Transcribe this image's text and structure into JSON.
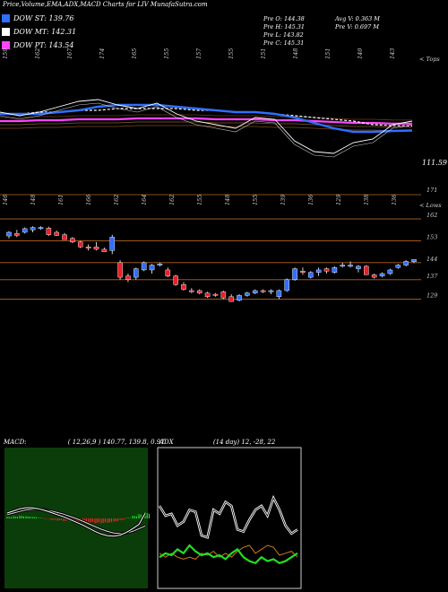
{
  "header": {
    "title": "Price,Volume,EMA,ADX,MACD Charts for LIV MunafaSutra.com",
    "legend": [
      {
        "label": "DOW ST: 139.76",
        "color": "#2f6fff"
      },
      {
        "label": "DOW MT: 142.31",
        "color": "#ffffff"
      },
      {
        "label": "DOW PT: 143.54",
        "color": "#ff44ff"
      }
    ],
    "stats_left": [
      "Pre  O: 144.38",
      "Pre  H: 145.31",
      "Pre  L: 143.82",
      "Pre  C: 145.31"
    ],
    "stats_right": [
      "Avg V: 0.363 M",
      "Pre  V: 0.697 M"
    ]
  },
  "colors": {
    "up": "#2f6fff",
    "down": "#e8202a",
    "ema_st": "#2f6fff",
    "ema_pt": "#ff44ff",
    "grid": "#b5651d",
    "adx_green": "#22dd22",
    "adx_orange": "#d07a1a",
    "macd_bg": "#0b3d0b",
    "macd_green": "#22dd22",
    "macd_red": "#ff2222"
  },
  "chart_data": [
    {
      "type": "line",
      "title": "Price with EMAs",
      "top_labels": [
        "159",
        "162",
        "167",
        "174",
        "165",
        "155",
        "157",
        "155",
        "151",
        "148",
        "151",
        "140",
        "143"
      ],
      "right_labels": [
        "< Tops",
        "111.59"
      ],
      "series": [
        {
          "name": "price",
          "values": [
            150,
            148,
            150,
            153,
            156,
            157,
            154,
            152,
            155,
            149,
            145,
            143,
            141,
            147,
            146,
            134,
            128,
            127,
            133,
            135,
            143,
            145
          ]
        },
        {
          "name": "DOW ST",
          "values": [
            149,
            149,
            149,
            150,
            151,
            153,
            154,
            154,
            154,
            153,
            152,
            151,
            150,
            150,
            149,
            147,
            144,
            141,
            139,
            139,
            139.5,
            139.76
          ]
        },
        {
          "name": "DOW MT",
          "values": [
            149,
            149,
            150,
            150,
            151,
            151,
            152,
            152,
            152,
            152,
            151,
            151,
            150,
            150,
            149,
            148,
            147,
            146,
            145,
            143,
            142.5,
            142.31
          ]
        },
        {
          "name": "DOW PT",
          "values": [
            145,
            145,
            145.5,
            145.5,
            146,
            146,
            146,
            146.5,
            146.5,
            146.5,
            146.5,
            146,
            146,
            146,
            145.5,
            145.5,
            145,
            144.5,
            144,
            144,
            143.6,
            143.54
          ]
        }
      ]
    },
    {
      "type": "candlestick",
      "title": "Daily candles",
      "top_labels": [
        "146",
        "148",
        "161",
        "166",
        "162",
        "164",
        "162",
        "155",
        "148",
        "155",
        "139",
        "136",
        "129",
        "138",
        "136"
      ],
      "right_labels": [
        "171",
        "< Lows",
        "162",
        "153",
        "144",
        "137",
        "129"
      ],
      "y_ticks": [
        162,
        153,
        144,
        137,
        129
      ],
      "ylim": [
        124,
        172
      ],
      "candles": [
        [
          155,
          157,
          154,
          156.5
        ],
        [
          156,
          157.5,
          154.5,
          155.2
        ],
        [
          156.5,
          158.5,
          156,
          158
        ],
        [
          157.5,
          159,
          156.5,
          158.5
        ],
        [
          158,
          159,
          157.5,
          158.5
        ],
        [
          158.2,
          158.8,
          155,
          155.5
        ],
        [
          156.5,
          157.2,
          155,
          155.2
        ],
        [
          155.5,
          156.2,
          153.5,
          153.5
        ],
        [
          154,
          154.5,
          152,
          152.5
        ],
        [
          152.5,
          153,
          150,
          150.5
        ],
        [
          150.5,
          151.5,
          149,
          150
        ],
        [
          150.5,
          152.5,
          149,
          149.5
        ],
        [
          149.5,
          150.2,
          148.5,
          148.5
        ],
        [
          149,
          155.5,
          147.5,
          154.5
        ],
        [
          144,
          145,
          137,
          138
        ],
        [
          138.5,
          139.5,
          136,
          137
        ],
        [
          138,
          142,
          137,
          141.5
        ],
        [
          141,
          144.5,
          140.5,
          144
        ],
        [
          141,
          143.5,
          139.5,
          143
        ],
        [
          143,
          144,
          142.5,
          143.5
        ],
        [
          141,
          142,
          138,
          138.5
        ],
        [
          138.5,
          139,
          134.5,
          135
        ],
        [
          135,
          136,
          132.5,
          133
        ],
        [
          132.5,
          133.5,
          131.5,
          132
        ],
        [
          132.5,
          133,
          131,
          131.5
        ],
        [
          131.5,
          132,
          129.5,
          130
        ],
        [
          131,
          131.5,
          130,
          130.5
        ],
        [
          132,
          132.5,
          129,
          129.5
        ],
        [
          130,
          131,
          128,
          128
        ],
        [
          128.5,
          131,
          128,
          130.5
        ],
        [
          130.5,
          132,
          130,
          131.5
        ],
        [
          131.5,
          133,
          131,
          132.5
        ],
        [
          132.5,
          133,
          131.5,
          132
        ],
        [
          132,
          133,
          131,
          132.5
        ],
        [
          130,
          133,
          129,
          132.5
        ],
        [
          132.5,
          137.5,
          132,
          137
        ],
        [
          137,
          142,
          136.5,
          141.5
        ],
        [
          140.5,
          142,
          139,
          140
        ],
        [
          138,
          140.5,
          137.5,
          140
        ],
        [
          140,
          142,
          138.5,
          141
        ],
        [
          141.5,
          142,
          139.5,
          140.5
        ],
        [
          140,
          142.5,
          139.5,
          142
        ],
        [
          142.5,
          144,
          142,
          143
        ],
        [
          142.5,
          144.5,
          142,
          143
        ],
        [
          141.5,
          143,
          140,
          142.5
        ],
        [
          142.5,
          143,
          139,
          139
        ],
        [
          139,
          139.5,
          137.5,
          138
        ],
        [
          138.5,
          140,
          138,
          139.5
        ],
        [
          139.5,
          141.5,
          139,
          141
        ],
        [
          142,
          143.5,
          141.5,
          143
        ],
        [
          143,
          145,
          142.5,
          144.5
        ],
        [
          144.4,
          145.3,
          143.8,
          145.3
        ]
      ]
    },
    {
      "type": "line",
      "title": "MACD",
      "label": "MACD:",
      "params": "( 12,26,9 ) 140.77,  139.8,  0.97",
      "series": [
        {
          "name": "macd",
          "values": [
            1.0,
            1.4,
            1.8,
            2.0,
            2.0,
            1.8,
            1.5,
            1.1,
            0.7,
            0.3,
            -0.2,
            -0.7,
            -1.2,
            -1.8,
            -2.4,
            -2.9,
            -3.2,
            -3.3,
            -3.1,
            -2.6,
            -1.9,
            -1.1,
            0.97
          ]
        },
        {
          "name": "signal",
          "values": [
            0.7,
            1.0,
            1.3,
            1.6,
            1.7,
            1.7,
            1.6,
            1.4,
            1.1,
            0.8,
            0.4,
            0.0,
            -0.5,
            -1.0,
            -1.5,
            -2.0,
            -2.4,
            -2.7,
            -2.8,
            -2.7,
            -2.4,
            -1.9,
            -1.4
          ]
        }
      ],
      "histogram": [
        0.3,
        0.4,
        0.5,
        0.4,
        0.3,
        0.1,
        -0.1,
        -0.3,
        -0.4,
        -0.5,
        -0.6,
        -0.7,
        -0.7,
        -0.8,
        -0.9,
        -0.9,
        -0.8,
        -0.6,
        -0.3,
        0.1,
        0.5,
        0.8,
        1.1
      ]
    },
    {
      "type": "line",
      "title": "ADX",
      "label": "ADX",
      "params": "(14  day) 12,  -28,  22",
      "series": [
        {
          "name": "adx",
          "values": [
            40,
            35,
            36,
            30,
            32,
            38,
            37,
            25,
            24,
            38,
            36,
            42,
            40,
            28,
            27,
            33,
            38,
            40,
            35,
            44,
            38,
            30,
            26,
            28
          ]
        },
        {
          "name": "plus_di",
          "values": [
            14,
            16,
            15,
            18,
            16,
            20,
            17,
            15,
            16,
            14,
            15,
            13,
            16,
            18,
            14,
            12,
            11,
            14,
            12,
            13,
            11,
            12,
            14,
            16
          ]
        },
        {
          "name": "minus_di",
          "values": [
            16,
            14,
            16,
            14,
            13,
            14,
            13,
            16,
            15,
            17,
            14,
            16,
            14,
            17,
            19,
            20,
            16,
            18,
            20,
            19,
            15,
            16,
            17,
            14
          ]
        }
      ]
    }
  ]
}
